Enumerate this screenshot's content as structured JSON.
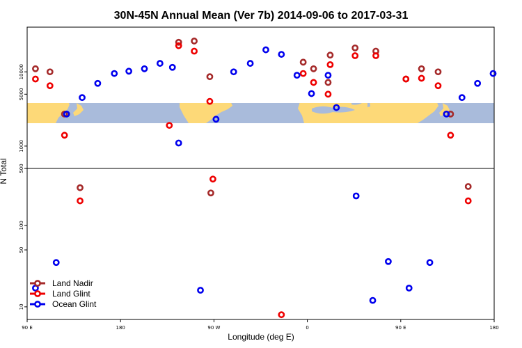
{
  "chart_data": {
    "type": "scatter",
    "title": "30N-45N Annual Mean (Ver 7b)   2014-09-06 to 2017-03-31",
    "xlabel": "Longitude (deg E)",
    "ylabel": "N Total",
    "x_ticks": [
      {
        "value": 90,
        "label": "90 E"
      },
      {
        "value": 180,
        "label": "180"
      },
      {
        "value": 270,
        "label": "90 W"
      },
      {
        "value": 360,
        "label": "0"
      },
      {
        "value": 450,
        "label": "90 E"
      },
      {
        "value": 540,
        "label": "180"
      }
    ],
    "xlim": [
      90,
      540
    ],
    "panels": [
      {
        "name": "upper",
        "scale": "log",
        "ylim": [
          500,
          40000
        ],
        "yticks": [
          "500",
          "1000",
          "5000",
          "10000"
        ],
        "map_band": [
          1800,
          3800
        ]
      },
      {
        "name": "lower",
        "scale": "log",
        "ylim": [
          7,
          500
        ],
        "yticks": [
          "10",
          "50",
          "100",
          "500"
        ]
      }
    ],
    "series": [
      {
        "name": "Land Nadir",
        "color": "#a52a2a",
        "points": [
          [
            98,
            11000
          ],
          [
            112,
            10000
          ],
          [
            126,
            2700
          ],
          [
            141,
            290
          ],
          [
            236,
            25000
          ],
          [
            251,
            26000
          ],
          [
            266,
            8600
          ],
          [
            267,
            250
          ],
          [
            356,
            13500
          ],
          [
            366,
            11000
          ],
          [
            380,
            7200
          ],
          [
            382,
            16800
          ],
          [
            406,
            21000
          ],
          [
            426,
            19000
          ],
          [
            455,
            8000
          ],
          [
            470,
            11000
          ],
          [
            486,
            10000
          ],
          [
            498,
            2700
          ],
          [
            515,
            300
          ]
        ]
      },
      {
        "name": "Land Glint",
        "color": "#ee0000",
        "points": [
          [
            98,
            8000
          ],
          [
            112,
            6500
          ],
          [
            126,
            1400
          ],
          [
            141,
            200
          ],
          [
            227,
            1900
          ],
          [
            236,
            22500
          ],
          [
            251,
            19000
          ],
          [
            266,
            4000
          ],
          [
            269,
            370
          ],
          [
            335,
            8
          ],
          [
            356,
            9500
          ],
          [
            366,
            7200
          ],
          [
            380,
            5000
          ],
          [
            382,
            12500
          ],
          [
            406,
            16500
          ],
          [
            426,
            16500
          ],
          [
            455,
            8000
          ],
          [
            470,
            8200
          ],
          [
            486,
            6500
          ],
          [
            498,
            1400
          ],
          [
            515,
            200
          ]
        ]
      },
      {
        "name": "Ocean Glint",
        "color": "#0000ee",
        "points": [
          [
            98,
            17
          ],
          [
            118,
            35
          ],
          [
            128,
            2700
          ],
          [
            143,
            4500
          ],
          [
            158,
            7000
          ],
          [
            174,
            9500
          ],
          [
            188,
            10200
          ],
          [
            203,
            11000
          ],
          [
            218,
            13000
          ],
          [
            230,
            11500
          ],
          [
            236,
            1100
          ],
          [
            257,
            16
          ],
          [
            272,
            2300
          ],
          [
            289,
            10000
          ],
          [
            305,
            13000
          ],
          [
            320,
            19800
          ],
          [
            335,
            17200
          ],
          [
            350,
            9000
          ],
          [
            364,
            5100
          ],
          [
            380,
            9000
          ],
          [
            388,
            3300
          ],
          [
            407,
            230
          ],
          [
            423,
            12
          ],
          [
            438,
            36
          ],
          [
            458,
            17
          ],
          [
            478,
            35
          ],
          [
            494,
            2700
          ],
          [
            509,
            4500
          ],
          [
            524,
            7000
          ],
          [
            539,
            9500
          ]
        ]
      }
    ]
  }
}
